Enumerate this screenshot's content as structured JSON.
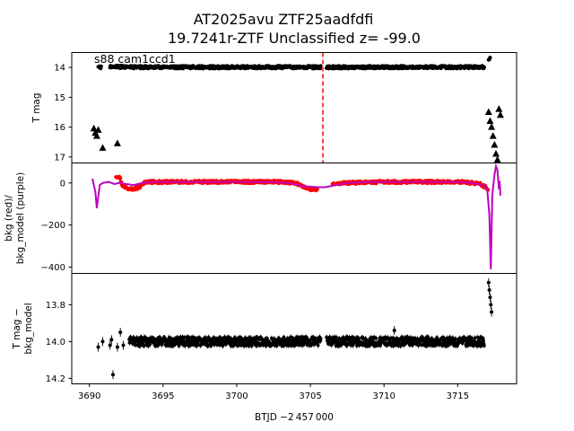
{
  "title": {
    "line1": "AT2025avu  ZTF25aadfdfi",
    "line2": "19.7241r-ZTF Unclassified z= -99.0"
  },
  "annotation": "s88 cam1ccd1",
  "xlabel": "BTJD −2 457 000",
  "colors": {
    "mag_points": "#000000",
    "bkg_points": "#ff0000",
    "bkg_model": "#bf00bf",
    "event_marker": "#ff0000"
  },
  "chart_data": [
    {
      "type": "scatter",
      "panel": "top",
      "ylabel": "T mag",
      "xlim": [
        3688.8,
        3719.0
      ],
      "ylim": [
        17.2,
        13.5
      ],
      "y_inverted": true,
      "xticks": [],
      "yticks": [
        14,
        15,
        16,
        17
      ],
      "ytick_labels": [
        "14",
        "15",
        "16",
        "17"
      ],
      "event_marker_x": 3705.85,
      "event_marker_style": "dashed vertical line",
      "series": [
        {
          "marker": "dot",
          "segments": [
            {
              "x_start": 3690.6,
              "x_end": 3690.8,
              "y": 14.0
            },
            {
              "x_start": 3691.4,
              "x_end": 3692.6,
              "y": 13.98
            },
            {
              "x_start": 3692.7,
              "x_end": 3705.7,
              "y": 13.99
            },
            {
              "x_start": 3706.1,
              "x_end": 3716.8,
              "y": 13.99
            },
            {
              "x_start": 3717.1,
              "x_end": 3717.2,
              "y": 13.7
            }
          ]
        },
        {
          "marker": "triangle",
          "points": [
            {
              "x": 3690.3,
              "y": 16.05
            },
            {
              "x": 3690.4,
              "y": 16.2
            },
            {
              "x": 3690.5,
              "y": 16.3
            },
            {
              "x": 3690.6,
              "y": 16.1
            },
            {
              "x": 3690.9,
              "y": 16.7
            },
            {
              "x": 3691.9,
              "y": 16.55
            },
            {
              "x": 3717.1,
              "y": 15.5
            },
            {
              "x": 3717.2,
              "y": 15.8
            },
            {
              "x": 3717.3,
              "y": 16.0
            },
            {
              "x": 3717.4,
              "y": 16.3
            },
            {
              "x": 3717.5,
              "y": 16.6
            },
            {
              "x": 3717.6,
              "y": 16.9
            },
            {
              "x": 3717.7,
              "y": 17.1
            },
            {
              "x": 3717.8,
              "y": 15.4
            },
            {
              "x": 3717.9,
              "y": 15.6
            }
          ]
        }
      ]
    },
    {
      "type": "line",
      "panel": "middle",
      "ylabel": "bkg (red)/\nbkg_model (purple)",
      "xlim": [
        3688.8,
        3719.0
      ],
      "ylim": [
        -430,
        95
      ],
      "xticks": [],
      "yticks": [
        0,
        -200,
        -400
      ],
      "ytick_labels": [
        "0",
        "−200",
        "−400"
      ],
      "series": [
        {
          "name": "bkg",
          "marker": "dot",
          "points": [
            [
              3691.8,
              25
            ],
            [
              3692.0,
              30
            ],
            [
              3692.1,
              20
            ],
            [
              3692.2,
              -10
            ],
            [
              3692.5,
              -25
            ],
            [
              3693.0,
              -30
            ],
            [
              3693.4,
              -20
            ],
            [
              3693.7,
              0
            ],
            [
              3694.2,
              5
            ],
            [
              3695.0,
              5
            ],
            [
              3697.0,
              5
            ],
            [
              3699.0,
              5
            ],
            [
              3701.0,
              5
            ],
            [
              3703.0,
              5
            ],
            [
              3704.0,
              0
            ],
            [
              3704.5,
              -20
            ],
            [
              3705.0,
              -30
            ],
            [
              3705.5,
              -30
            ],
            [
              3706.5,
              -5
            ],
            [
              3707.5,
              0
            ],
            [
              3708.5,
              2
            ],
            [
              3710.0,
              5
            ],
            [
              3712.0,
              5
            ],
            [
              3714.0,
              5
            ],
            [
              3715.5,
              5
            ],
            [
              3716.0,
              0
            ],
            [
              3716.5,
              -5
            ],
            [
              3716.9,
              -20
            ],
            [
              3717.1,
              -40
            ]
          ]
        },
        {
          "name": "bkg_model",
          "marker": "line",
          "points": [
            [
              3690.2,
              20
            ],
            [
              3690.4,
              -40
            ],
            [
              3690.5,
              -120
            ],
            [
              3690.7,
              -10
            ],
            [
              3690.9,
              0
            ],
            [
              3691.3,
              5
            ],
            [
              3691.7,
              -5
            ],
            [
              3692.0,
              0
            ],
            [
              3693.0,
              -10
            ],
            [
              3693.6,
              0
            ],
            [
              3694.2,
              5
            ],
            [
              3696.0,
              5
            ],
            [
              3698.0,
              5
            ],
            [
              3700.0,
              5
            ],
            [
              3702.0,
              5
            ],
            [
              3703.5,
              0
            ],
            [
              3704.5,
              -15
            ],
            [
              3705.5,
              -20
            ],
            [
              3706.0,
              -20
            ],
            [
              3707.5,
              0
            ],
            [
              3709.0,
              5
            ],
            [
              3711.0,
              5
            ],
            [
              3713.0,
              5
            ],
            [
              3715.0,
              5
            ],
            [
              3716.0,
              0
            ],
            [
              3716.7,
              -10
            ],
            [
              3717.0,
              -25
            ],
            [
              3717.15,
              -150
            ],
            [
              3717.25,
              -410
            ],
            [
              3717.35,
              -60
            ],
            [
              3717.5,
              40
            ],
            [
              3717.6,
              80
            ],
            [
              3717.7,
              60
            ],
            [
              3717.8,
              -30
            ],
            [
              3717.85,
              10
            ],
            [
              3717.9,
              -60
            ]
          ]
        }
      ]
    },
    {
      "type": "scatter",
      "panel": "bottom",
      "ylabel": "T mag −\nbkg_model",
      "xlim": [
        3688.8,
        3719.0
      ],
      "ylim": [
        14.23,
        13.63
      ],
      "y_inverted": true,
      "xticks": [
        3690,
        3695,
        3700,
        3705,
        3710,
        3715
      ],
      "xtick_labels": [
        "3690",
        "3695",
        "3700",
        "3705",
        "3710",
        "3715"
      ],
      "yticks": [
        13.8,
        14.0,
        14.2
      ],
      "ytick_labels": [
        "13.8",
        "14.0",
        "14.2"
      ],
      "series": [
        {
          "marker": "dot with error bar",
          "segments": [
            {
              "x_start": 3692.7,
              "x_end": 3705.7,
              "y": 14.0
            },
            {
              "x_start": 3706.1,
              "x_end": 3716.8,
              "y": 14.0
            }
          ],
          "points": [
            {
              "x": 3690.6,
              "y": 14.03
            },
            {
              "x": 3690.9,
              "y": 14.0
            },
            {
              "x": 3691.4,
              "y": 14.02
            },
            {
              "x": 3691.5,
              "y": 13.99
            },
            {
              "x": 3691.6,
              "y": 14.18
            },
            {
              "x": 3691.9,
              "y": 14.03
            },
            {
              "x": 3692.1,
              "y": 13.95
            },
            {
              "x": 3692.3,
              "y": 14.02
            },
            {
              "x": 3710.7,
              "y": 13.94
            },
            {
              "x": 3717.1,
              "y": 13.68
            },
            {
              "x": 3717.15,
              "y": 13.72
            },
            {
              "x": 3717.2,
              "y": 13.76
            },
            {
              "x": 3717.25,
              "y": 13.8
            },
            {
              "x": 3717.3,
              "y": 13.84
            }
          ]
        }
      ]
    }
  ]
}
